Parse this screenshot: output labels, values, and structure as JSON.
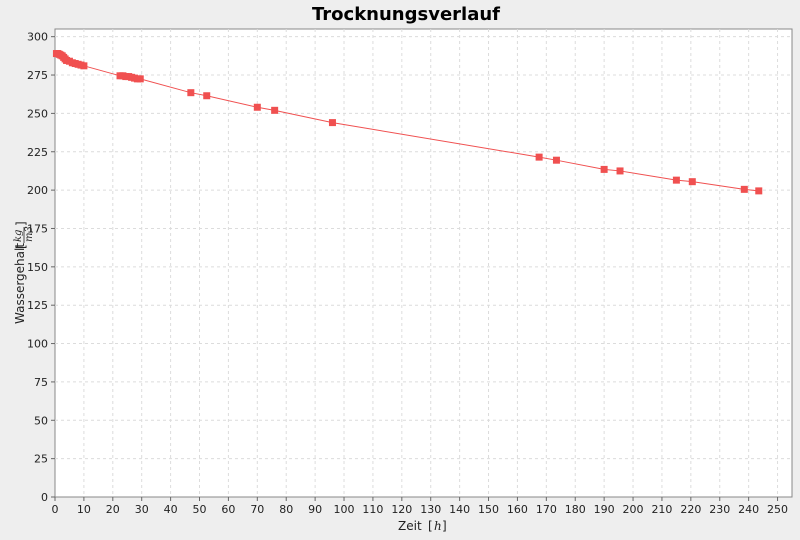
{
  "chart_data": {
    "type": "line",
    "title": "Trocknungsverlauf",
    "xlabel": "Zeit",
    "x_unit": "h",
    "ylabel": "Wassergehalt",
    "y_unit_numerator": "kg",
    "y_unit_denominator": "m3",
    "xlim": [
      0,
      255
    ],
    "ylim": [
      0,
      305
    ],
    "x_ticks": [
      0,
      10,
      20,
      30,
      40,
      50,
      60,
      70,
      80,
      90,
      100,
      110,
      120,
      130,
      140,
      150,
      160,
      170,
      180,
      190,
      200,
      210,
      220,
      230,
      240,
      250
    ],
    "y_ticks": [
      0,
      25,
      50,
      75,
      100,
      125,
      150,
      175,
      200,
      225,
      250,
      275,
      300
    ],
    "grid": true,
    "legend": "none",
    "series": [
      {
        "color": "#f05050",
        "marker": "square",
        "points": [
          [
            0.5,
            289
          ],
          [
            1,
            289
          ],
          [
            1.5,
            288.5
          ],
          [
            2,
            288
          ],
          [
            2.5,
            287.5
          ],
          [
            3,
            286.5
          ],
          [
            3.5,
            285.5
          ],
          [
            4,
            284.5
          ],
          [
            5,
            284
          ],
          [
            6,
            283
          ],
          [
            7,
            282.5
          ],
          [
            8,
            282
          ],
          [
            9,
            281.5
          ],
          [
            10,
            281
          ],
          [
            22.5,
            274.5
          ],
          [
            23.5,
            274.5
          ],
          [
            24.5,
            274
          ],
          [
            25.5,
            274
          ],
          [
            26.5,
            273.5
          ],
          [
            27.5,
            273
          ],
          [
            28.5,
            272.5
          ],
          [
            29.5,
            272.5
          ],
          [
            47,
            263.5
          ],
          [
            52.5,
            261.5
          ],
          [
            70,
            254
          ],
          [
            76,
            252
          ],
          [
            96,
            244
          ],
          [
            167.5,
            221.5
          ],
          [
            173.5,
            219.5
          ],
          [
            190,
            213.5
          ],
          [
            195.5,
            212.5
          ],
          [
            215,
            206.5
          ],
          [
            220.5,
            205.5
          ],
          [
            238.5,
            200.5
          ],
          [
            243.5,
            199.5
          ]
        ]
      }
    ]
  }
}
